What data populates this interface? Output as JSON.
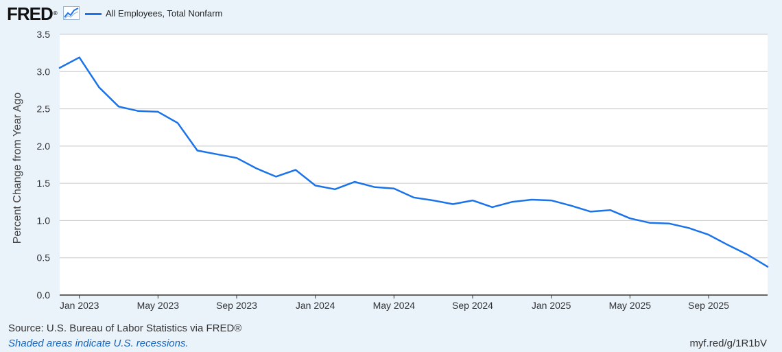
{
  "header": {
    "logo_text": "FRED",
    "logo_mark": "®",
    "logo_icon": "line-chart-icon",
    "legend_label": "All Employees, Total Nonfarm",
    "legend_color": "#1a73e8"
  },
  "chart_data": {
    "type": "line",
    "title": "",
    "xlabel": "",
    "ylabel": "Percent Change from Year Ago",
    "ylim": [
      0,
      3.5
    ],
    "yticks": [
      "0.0",
      "0.5",
      "1.0",
      "1.5",
      "2.0",
      "2.5",
      "3.0",
      "3.5"
    ],
    "xticks": [
      "Jan 2023",
      "May 2023",
      "Sep 2023",
      "Jan 2024",
      "May 2024",
      "Sep 2024",
      "Jan 2025",
      "May 2025",
      "Sep 2025"
    ],
    "grid": true,
    "legend_position": "top-left",
    "series": [
      {
        "name": "All Employees, Total Nonfarm",
        "color": "#1a73e8",
        "x": [
          "2022-12",
          "2023-01",
          "2023-02",
          "2023-03",
          "2023-04",
          "2023-05",
          "2023-06",
          "2023-07",
          "2023-08",
          "2023-09",
          "2023-10",
          "2023-11",
          "2023-12",
          "2024-01",
          "2024-02",
          "2024-03",
          "2024-04",
          "2024-05",
          "2024-06",
          "2024-07",
          "2024-08",
          "2024-09",
          "2024-10",
          "2024-11",
          "2024-12",
          "2025-01",
          "2025-02",
          "2025-03",
          "2025-04",
          "2025-05",
          "2025-06",
          "2025-07",
          "2025-08",
          "2025-09",
          "2025-10",
          "2025-11",
          "2025-12"
        ],
        "values": [
          3.05,
          3.19,
          2.79,
          2.53,
          2.47,
          2.46,
          2.31,
          1.94,
          1.89,
          1.84,
          1.7,
          1.59,
          1.68,
          1.47,
          1.42,
          1.52,
          1.45,
          1.43,
          1.31,
          1.27,
          1.22,
          1.27,
          1.18,
          1.25,
          1.28,
          1.27,
          1.2,
          1.12,
          1.14,
          1.03,
          0.97,
          0.96,
          0.9,
          0.81,
          0.67,
          0.54,
          0.38
        ]
      }
    ]
  },
  "footer": {
    "source": "Source: U.S. Bureau of Labor Statistics via FRED®",
    "recessions": "Shaded areas indicate U.S. recessions.",
    "url": "myf.red/g/1R1bV"
  }
}
